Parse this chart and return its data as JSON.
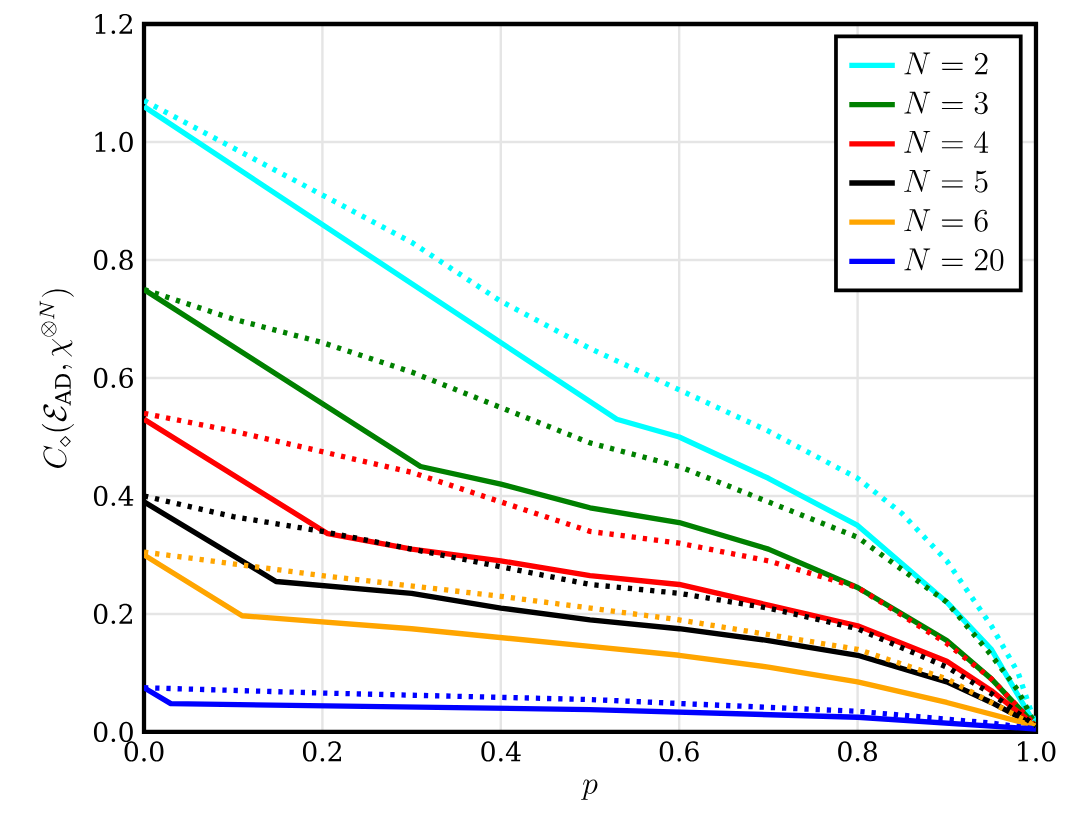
{
  "chart_data": {
    "type": "line",
    "xlabel": "p",
    "ylabel": "C_\\diamond(\\mathcal{E}_{\\mathrm{AD}},\\chi^{\\otimes N})",
    "xlim": [
      0,
      1
    ],
    "ylim": [
      0,
      1.2
    ],
    "xticks": [
      {
        "value": 0,
        "label": "0.0"
      },
      {
        "value": 0.2,
        "label": "0.2"
      },
      {
        "value": 0.4,
        "label": "0.4"
      },
      {
        "value": 0.6,
        "label": "0.6"
      },
      {
        "value": 0.8,
        "label": "0.8"
      },
      {
        "value": 1,
        "label": "1.0"
      }
    ],
    "yticks": [
      {
        "value": 0,
        "label": "0.0"
      },
      {
        "value": 0.2,
        "label": "0.2"
      },
      {
        "value": 0.4,
        "label": "0.4"
      },
      {
        "value": 0.6,
        "label": "0.6"
      },
      {
        "value": 0.8,
        "label": "0.8"
      },
      {
        "value": 1,
        "label": "1.0"
      },
      {
        "value": 1.2,
        "label": "1.2"
      }
    ],
    "grid": true,
    "legend": "top right",
    "series": [
      {
        "name": "N = 2",
        "color": "#00ffff",
        "line_style": "solid",
        "x": [
          0,
          0.53,
          0.6,
          0.7,
          0.8,
          0.9,
          0.95,
          1
        ],
        "values": [
          1.06,
          0.53,
          0.5,
          0.43,
          0.35,
          0.22,
          0.14,
          0.01
        ]
      },
      {
        "name": "N = 3",
        "color": "#008000",
        "line_style": "solid",
        "x": [
          0,
          0.31,
          0.4,
          0.5,
          0.6,
          0.7,
          0.8,
          0.9,
          0.95,
          1
        ],
        "values": [
          0.75,
          0.45,
          0.42,
          0.38,
          0.355,
          0.31,
          0.245,
          0.155,
          0.09,
          0.01
        ]
      },
      {
        "name": "N = 4",
        "color": "#ff0000",
        "line_style": "solid",
        "x": [
          0,
          0.206,
          0.3,
          0.4,
          0.5,
          0.6,
          0.7,
          0.8,
          0.9,
          0.95,
          1
        ],
        "values": [
          0.53,
          0.336,
          0.31,
          0.29,
          0.265,
          0.25,
          0.215,
          0.18,
          0.12,
          0.07,
          0.01
        ]
      },
      {
        "name": "N = 5",
        "color": "#000000",
        "line_style": "solid",
        "x": [
          0,
          0.148,
          0.3,
          0.4,
          0.5,
          0.6,
          0.7,
          0.8,
          0.9,
          0.95,
          1
        ],
        "values": [
          0.39,
          0.255,
          0.235,
          0.21,
          0.19,
          0.175,
          0.155,
          0.13,
          0.085,
          0.05,
          0.01
        ]
      },
      {
        "name": "N = 6",
        "color": "#ffa500",
        "line_style": "solid",
        "x": [
          0,
          0.11,
          0.3,
          0.5,
          0.6,
          0.7,
          0.8,
          0.9,
          1
        ],
        "values": [
          0.3,
          0.197,
          0.175,
          0.145,
          0.13,
          0.11,
          0.085,
          0.05,
          0.01
        ]
      },
      {
        "name": "N = 20",
        "color": "#0000ff",
        "line_style": "solid",
        "x": [
          0,
          0.03,
          0.5,
          0.8,
          1
        ],
        "values": [
          0.075,
          0.048,
          0.038,
          0.025,
          0.005
        ]
      },
      {
        "color": "#00ffff",
        "line_style": "dotted",
        "x": [
          0,
          0.1,
          0.2,
          0.3,
          0.4,
          0.5,
          0.6,
          0.7,
          0.8,
          0.85,
          0.9,
          0.95,
          0.98,
          1
        ],
        "values": [
          1.07,
          0.99,
          0.91,
          0.83,
          0.73,
          0.65,
          0.58,
          0.51,
          0.43,
          0.37,
          0.29,
          0.18,
          0.1,
          0.01
        ]
      },
      {
        "color": "#008000",
        "line_style": "dotted",
        "x": [
          0,
          0.1,
          0.2,
          0.3,
          0.4,
          0.5,
          0.6,
          0.7,
          0.8,
          0.9,
          0.95,
          0.98,
          1
        ],
        "values": [
          0.75,
          0.7,
          0.66,
          0.61,
          0.55,
          0.49,
          0.45,
          0.39,
          0.33,
          0.22,
          0.13,
          0.07,
          0.01
        ]
      },
      {
        "color": "#ff0000",
        "line_style": "dotted",
        "x": [
          0,
          0.1,
          0.2,
          0.3,
          0.4,
          0.5,
          0.6,
          0.7,
          0.8,
          0.9,
          0.95,
          1
        ],
        "values": [
          0.54,
          0.51,
          0.475,
          0.44,
          0.39,
          0.34,
          0.32,
          0.29,
          0.245,
          0.15,
          0.09,
          0.01
        ]
      },
      {
        "color": "#000000",
        "line_style": "dotted",
        "x": [
          0,
          0.1,
          0.2,
          0.3,
          0.4,
          0.5,
          0.6,
          0.7,
          0.8,
          0.9,
          0.95,
          1
        ],
        "values": [
          0.4,
          0.365,
          0.34,
          0.31,
          0.28,
          0.25,
          0.235,
          0.21,
          0.175,
          0.11,
          0.065,
          0.01
        ]
      },
      {
        "color": "#ffa500",
        "line_style": "dotted",
        "x": [
          0,
          0.2,
          0.4,
          0.6,
          0.8,
          0.9,
          1
        ],
        "values": [
          0.305,
          0.265,
          0.23,
          0.19,
          0.14,
          0.09,
          0.01
        ]
      },
      {
        "color": "#0000ff",
        "line_style": "dotted",
        "x": [
          0,
          0.2,
          0.5,
          0.8,
          0.95,
          1
        ],
        "values": [
          0.075,
          0.066,
          0.055,
          0.035,
          0.015,
          0.005
        ]
      }
    ]
  }
}
